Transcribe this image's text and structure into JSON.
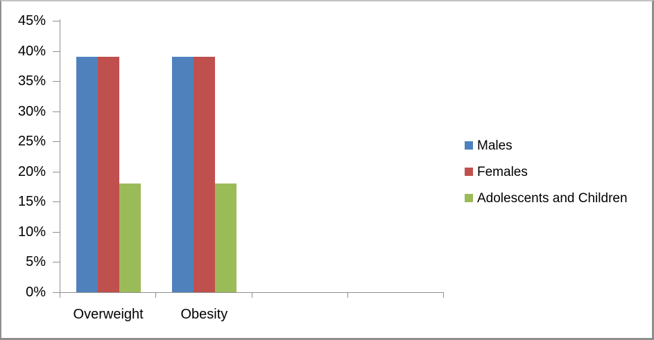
{
  "chart_data": {
    "type": "bar",
    "title": "",
    "xlabel": "",
    "ylabel": "",
    "categories": [
      "Overweight",
      "Obesity"
    ],
    "x_axis_total_slots": 4,
    "series": [
      {
        "name": "Males",
        "color": "#4F81BD",
        "values": [
          39,
          39
        ]
      },
      {
        "name": "Females",
        "color": "#C0504D",
        "values": [
          39,
          39
        ]
      },
      {
        "name": "Adolescents and Children",
        "color": "#9BBB59",
        "values": [
          18,
          18
        ]
      }
    ],
    "ylim": [
      0,
      45
    ],
    "y_tick_step": 5,
    "y_tick_labels": [
      "0%",
      "5%",
      "10%",
      "15%",
      "20%",
      "25%",
      "30%",
      "35%",
      "40%",
      "45%"
    ],
    "grid": false,
    "legend_position": "right",
    "axis_color": "#8E8E8E",
    "text_color": "#000000",
    "background_color": "#FFFFFF"
  }
}
